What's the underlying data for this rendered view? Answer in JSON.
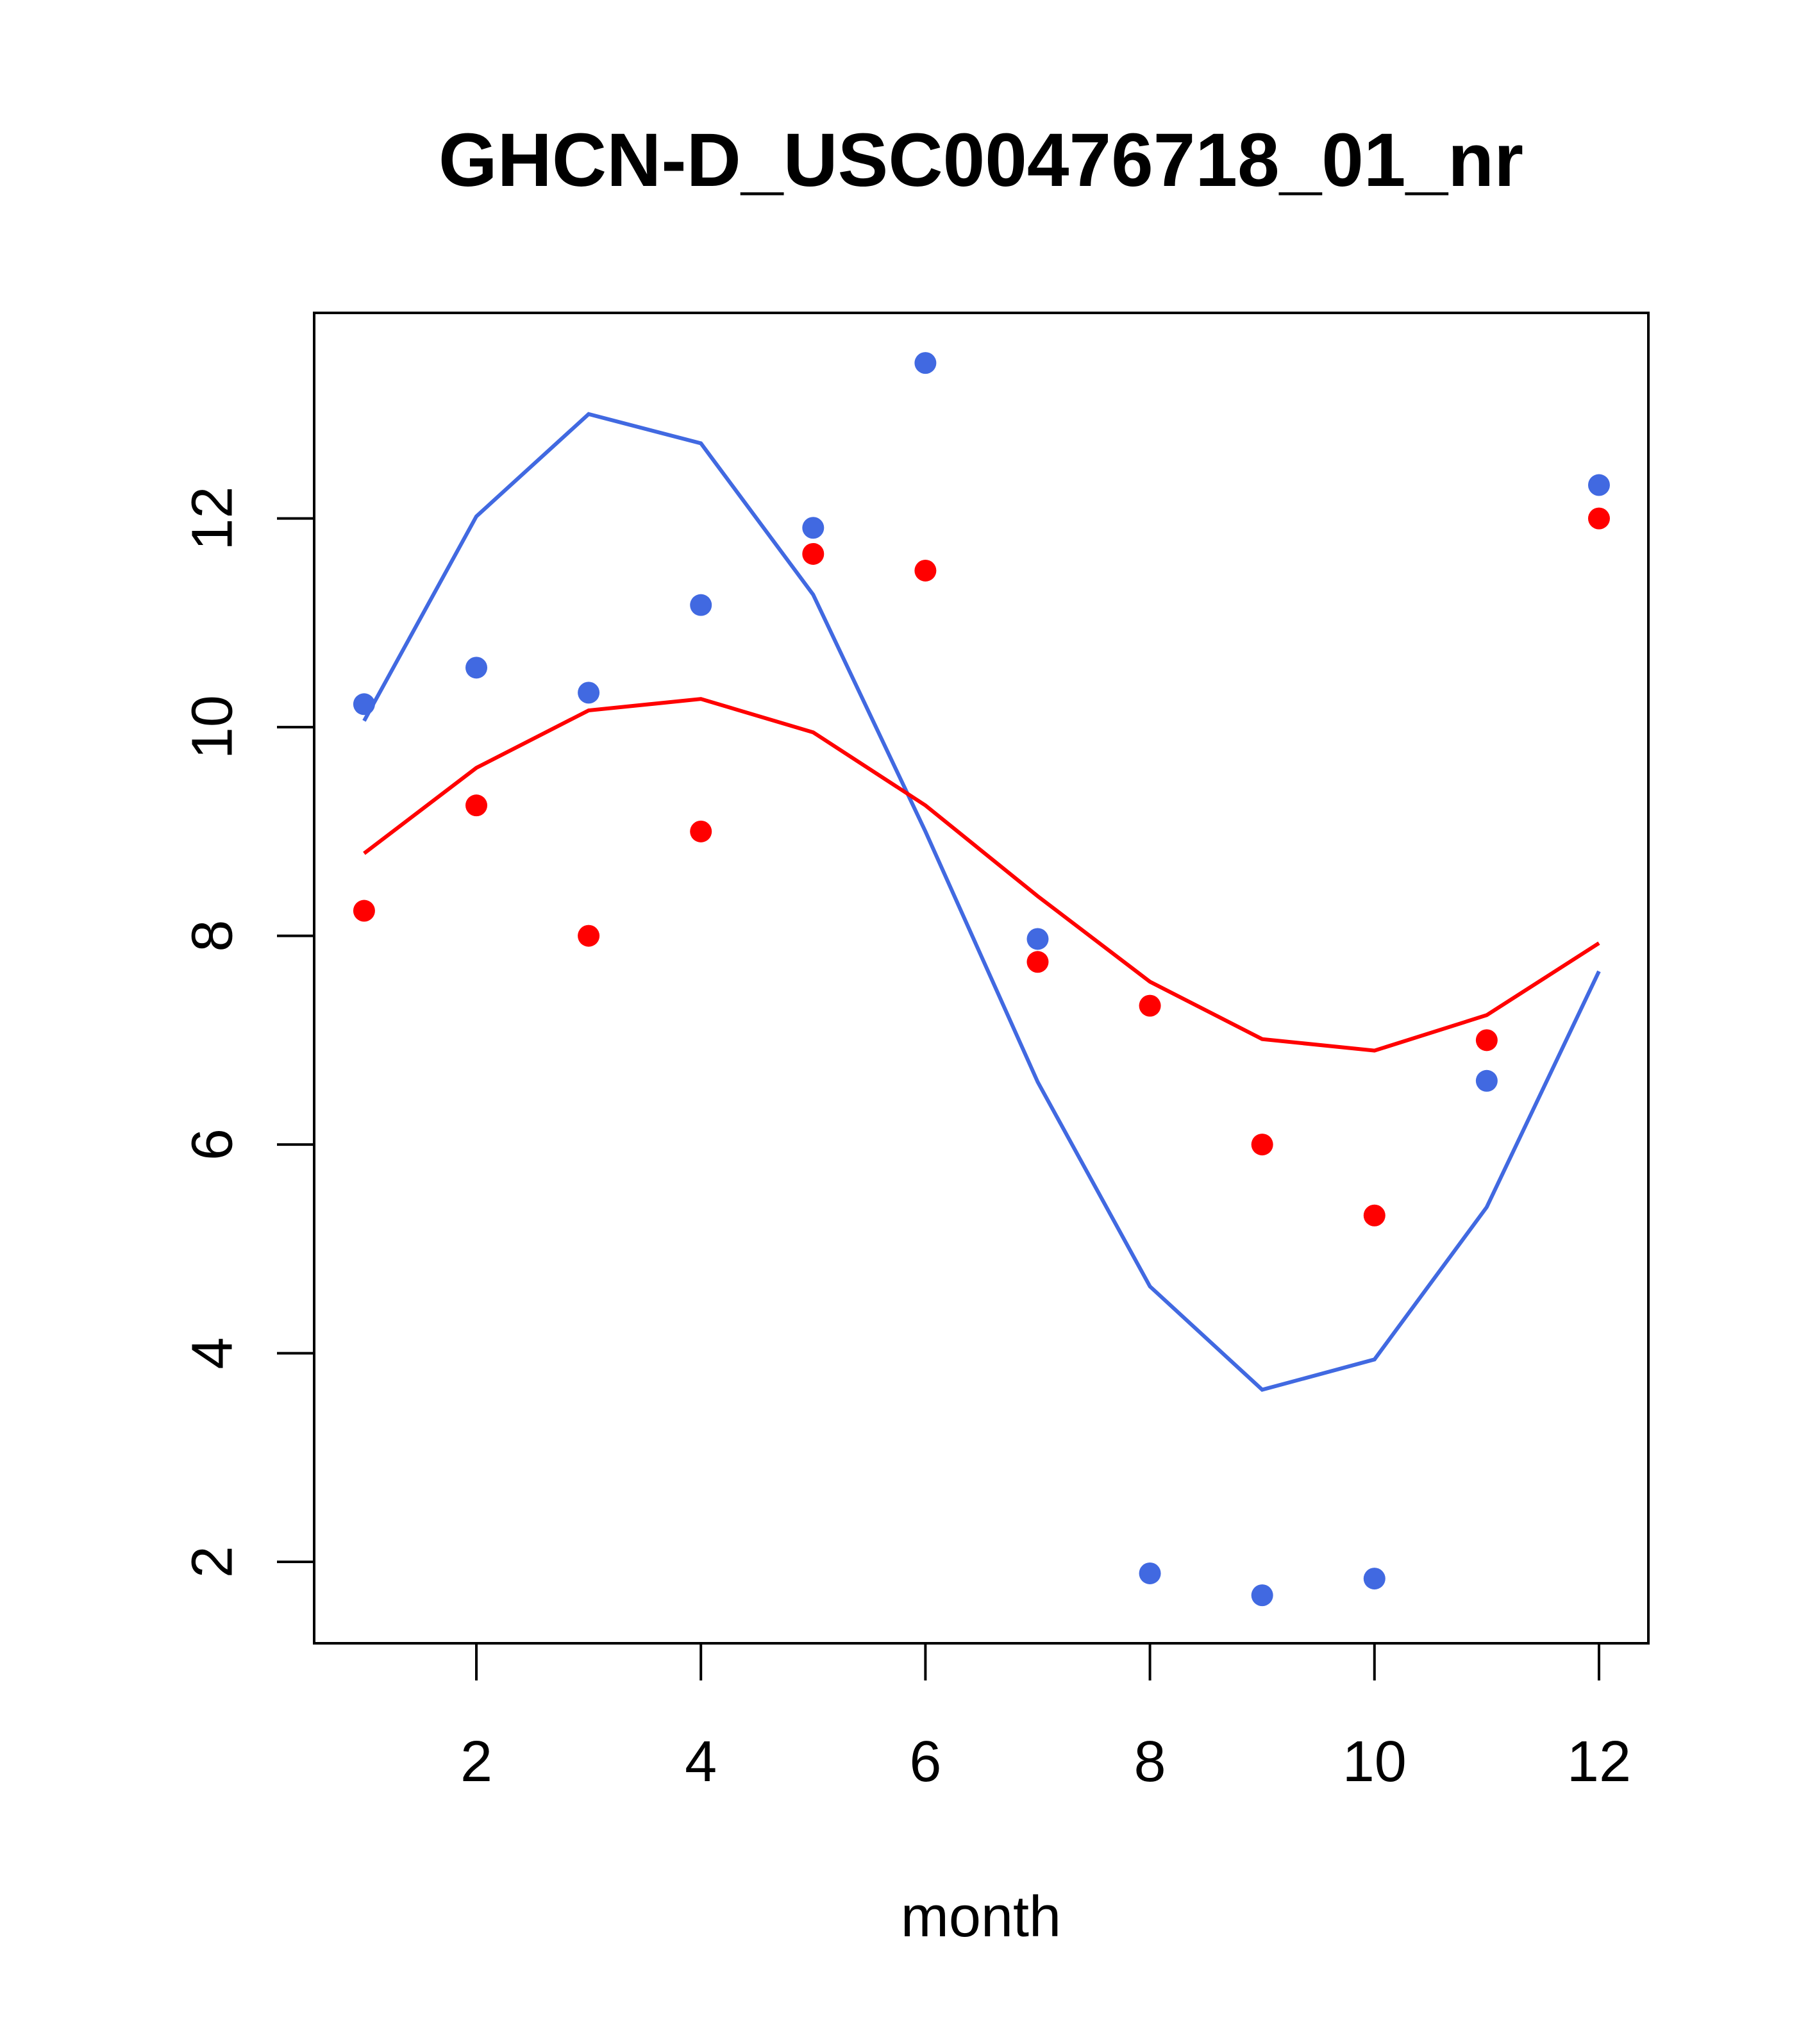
{
  "chart_data": {
    "type": "scatter",
    "title": "GHCN-D_USC00476718_01_nr",
    "xlabel": "month",
    "ylabel": "",
    "xlim": [
      0.555,
      12.44
    ],
    "ylim": [
      1.22,
      13.97
    ],
    "xticks": [
      2,
      4,
      6,
      8,
      10,
      12
    ],
    "yticks": [
      2,
      4,
      6,
      8,
      10,
      12
    ],
    "grid": false,
    "x": [
      1,
      2,
      3,
      4,
      5,
      6,
      7,
      8,
      9,
      10,
      11,
      12
    ],
    "series": [
      {
        "name": "blue points",
        "kind": "points",
        "color": "#4169E1",
        "values": [
          10.22,
          10.57,
          10.33,
          11.17,
          11.91,
          13.49,
          7.97,
          1.89,
          1.68,
          1.84,
          6.61,
          12.32
        ]
      },
      {
        "name": "red points",
        "kind": "points",
        "color": "#FF0000",
        "values": [
          8.24,
          9.25,
          8.0,
          9.0,
          11.66,
          11.5,
          7.75,
          7.33,
          6.0,
          5.32,
          7.0,
          12.0
        ]
      },
      {
        "name": "blue line",
        "kind": "line",
        "color": "#4169E1",
        "values": [
          10.06,
          12.02,
          13.0,
          12.72,
          11.27,
          9.0,
          6.6,
          4.64,
          3.65,
          3.94,
          5.4,
          7.66
        ]
      },
      {
        "name": "red line",
        "kind": "line",
        "color": "#FF0000",
        "values": [
          8.79,
          9.61,
          10.16,
          10.27,
          9.95,
          9.25,
          8.38,
          7.56,
          7.01,
          6.9,
          7.24,
          7.93
        ]
      }
    ]
  }
}
